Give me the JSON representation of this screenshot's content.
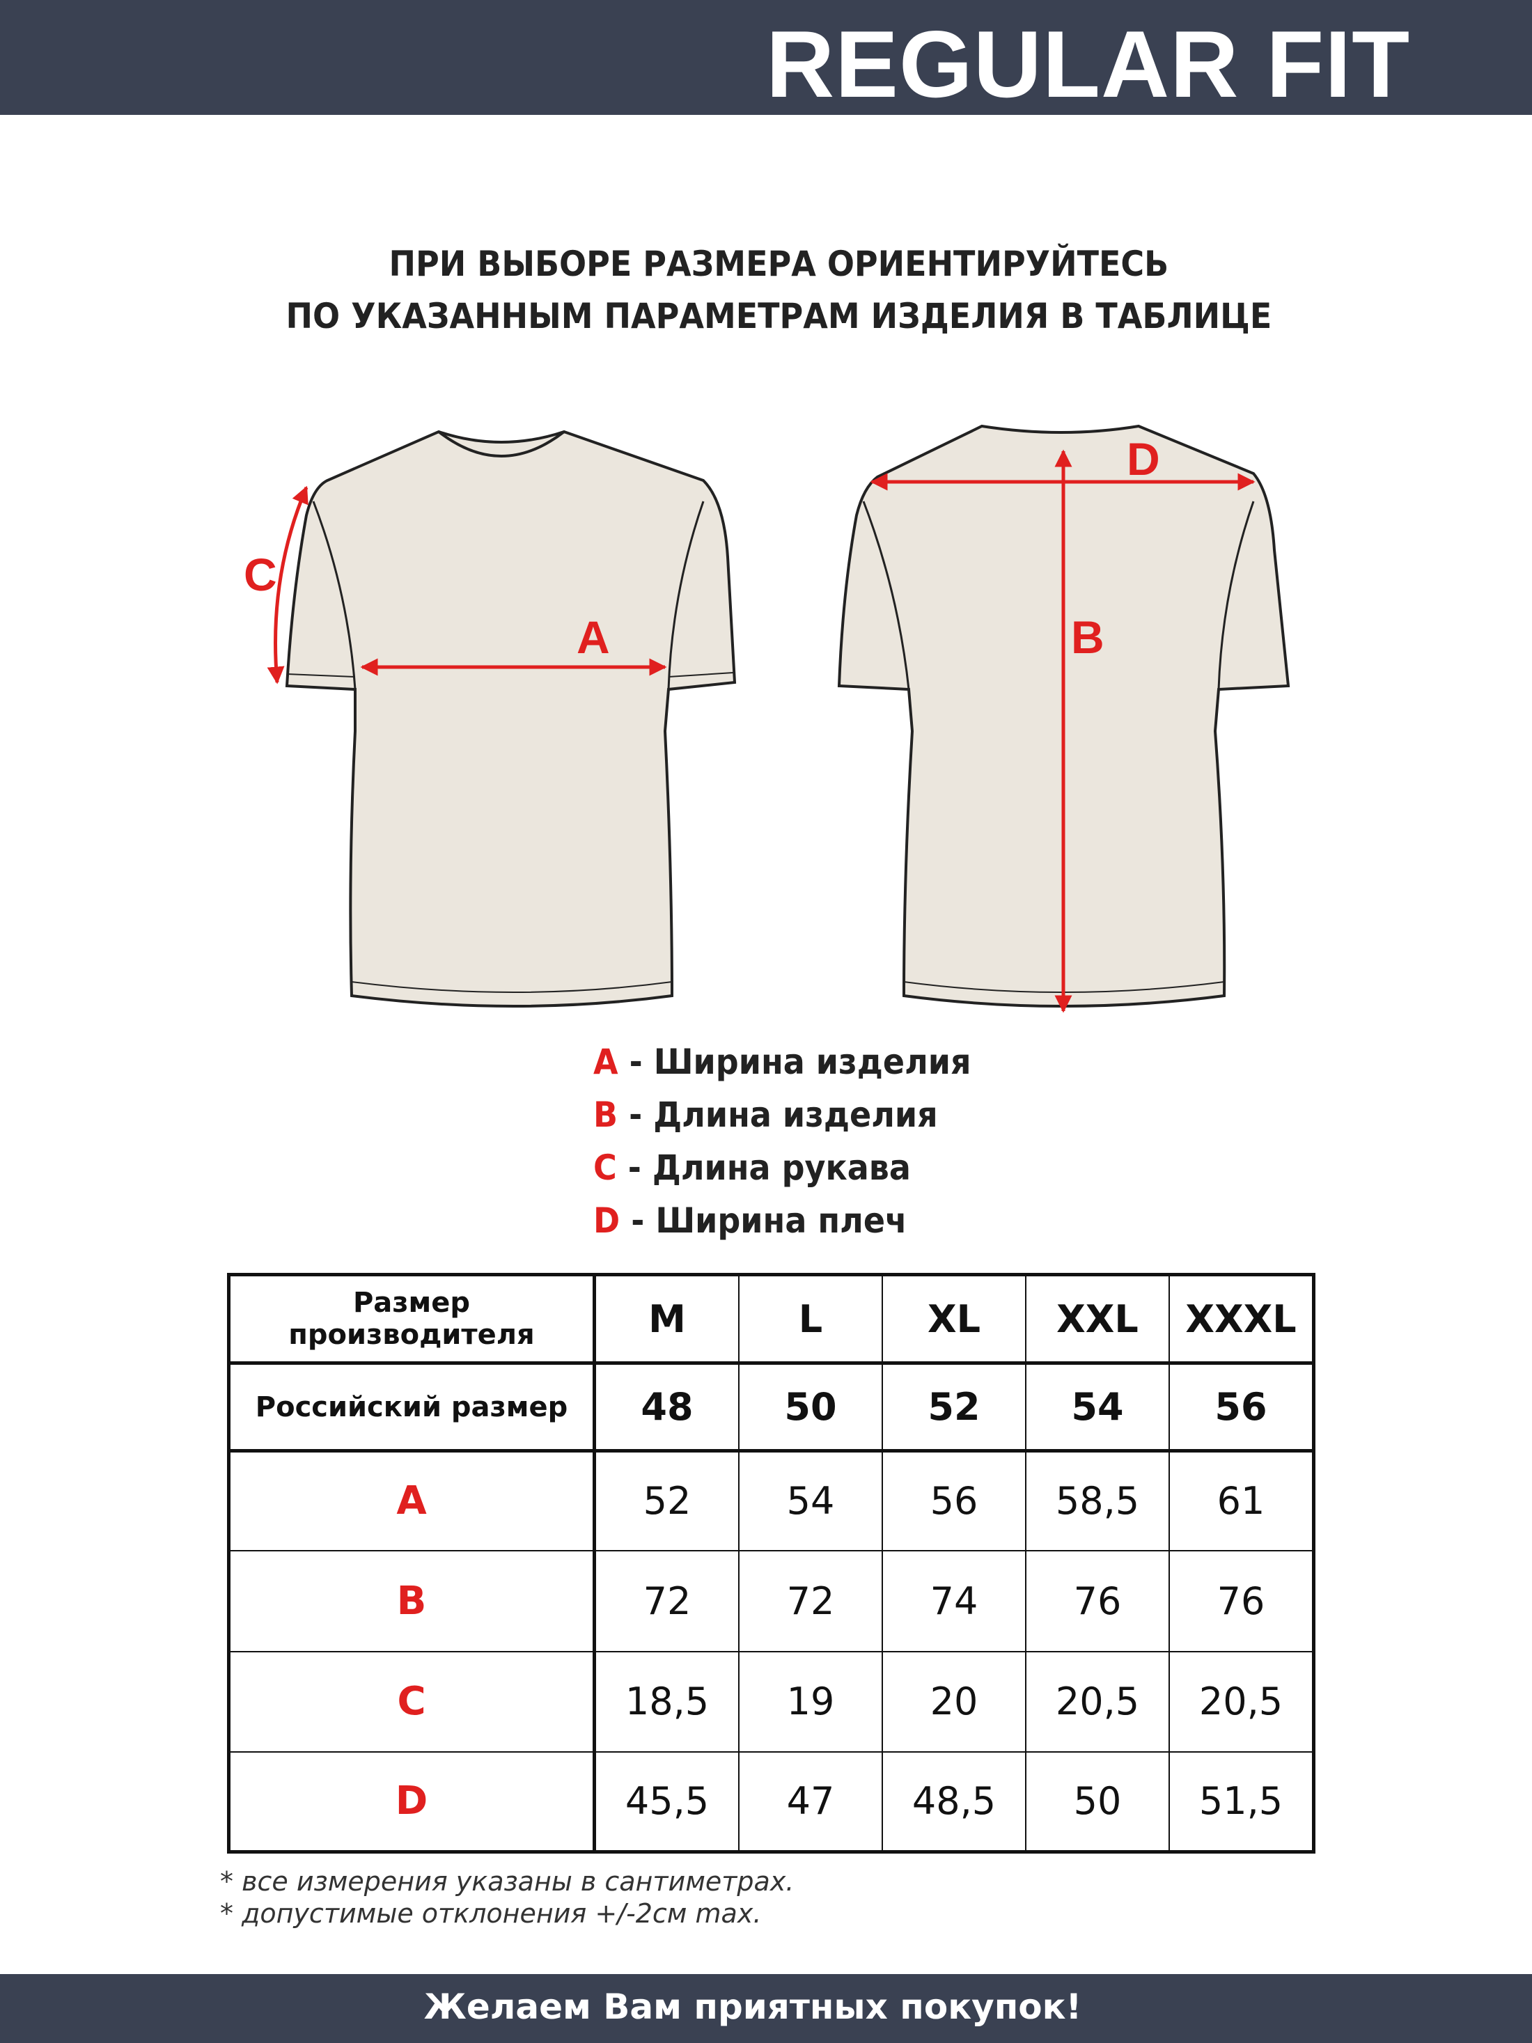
{
  "header": {
    "title": "REGULAR FIT"
  },
  "subtitle": {
    "line1": "ПРИ ВЫБОРЕ РАЗМЕРА ОРИЕНТИРУЙТЕСЬ",
    "line2": "ПО УКАЗАННЫМ ПАРАМЕТРАМ ИЗДЕЛИЯ В ТАБЛИЦЕ"
  },
  "diagram": {
    "labels": {
      "a": "A",
      "b": "B",
      "c": "C",
      "d": "D"
    },
    "colors": {
      "arrow": "#e0201f",
      "fabric": "#ebe6dd",
      "outline": "#222222"
    }
  },
  "legend": [
    {
      "key": "A",
      "text": " - Ширина изделия"
    },
    {
      "key": "B",
      "text": " - Длина изделия"
    },
    {
      "key": "C",
      "text": " - Длина рукава"
    },
    {
      "key": "D",
      "text": " - Ширина плеч"
    }
  ],
  "table": {
    "header_label": "Размер производителя",
    "sizes": [
      "M",
      "L",
      "XL",
      "XXL",
      "XXXL"
    ],
    "ru_label": "Российский размер",
    "ru_sizes": [
      "48",
      "50",
      "52",
      "54",
      "56"
    ],
    "rows": [
      {
        "key": "A",
        "values": [
          "52",
          "54",
          "56",
          "58,5",
          "61"
        ]
      },
      {
        "key": "B",
        "values": [
          "72",
          "72",
          "74",
          "76",
          "76"
        ]
      },
      {
        "key": "C",
        "values": [
          "18,5",
          "19",
          "20",
          "20,5",
          "20,5"
        ]
      },
      {
        "key": "D",
        "values": [
          "45,5",
          "47",
          "48,5",
          "50",
          "51,5"
        ]
      }
    ]
  },
  "notes": [
    "* все измерения указаны в сантиметрах.",
    "* допустимые отклонения +/-2см max."
  ],
  "footer": {
    "text": "Желаем Вам приятных покупок!"
  },
  "colors": {
    "bar": "#3a4152",
    "accent": "#e0201f"
  }
}
